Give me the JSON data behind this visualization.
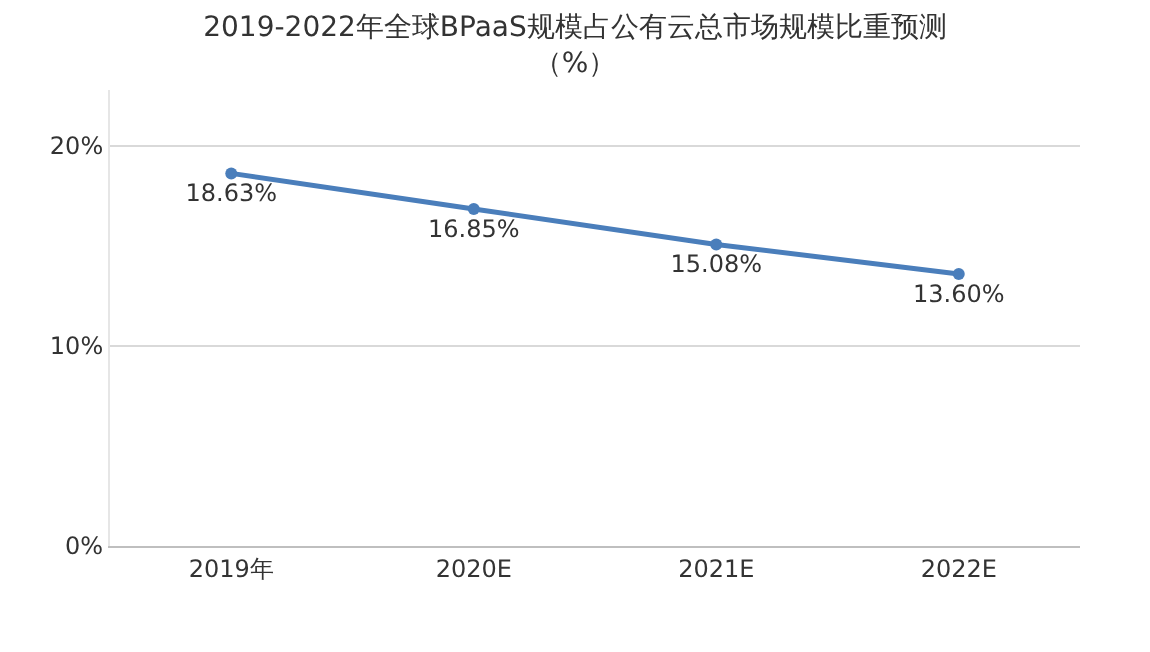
{
  "chart_data": {
    "type": "line",
    "title": "2019-2022年全球BPaaS规模占公有云总市场规模比重预测",
    "subtitle": "（%）",
    "categories": [
      "2019年",
      "2020E",
      "2021E",
      "2022E"
    ],
    "series": [
      {
        "color": "#4a7ebb",
        "values": [
          18.63,
          16.85,
          15.08,
          13.6
        ],
        "value_labels": [
          "18.63%",
          "16.85%",
          "15.08%",
          "13.60%"
        ]
      }
    ],
    "ylim": [
      0,
      22.8
    ],
    "yticks": [
      {
        "value": 0,
        "label": "0%"
      },
      {
        "value": 10,
        "label": "10%"
      },
      {
        "value": 20,
        "label": "20%"
      }
    ],
    "grid": "y",
    "marker": "circle",
    "line_style": "solid"
  }
}
